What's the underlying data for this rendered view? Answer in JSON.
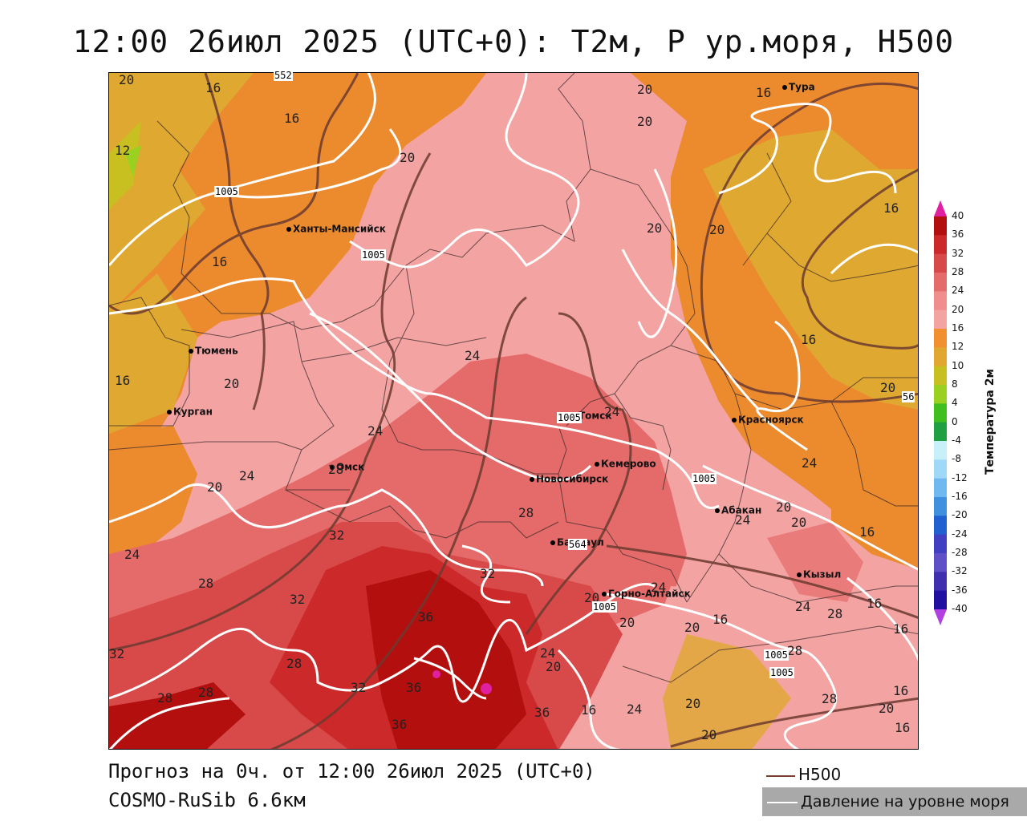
{
  "header": {
    "title": "12:00 26июл 2025 (UTC+0): T2м, P ур.моря, H500"
  },
  "map": {
    "cities": [
      {
        "name": "Тура"
      },
      {
        "name": "Ханты-Мансийск"
      },
      {
        "name": "Тюмень"
      },
      {
        "name": "Курган"
      },
      {
        "name": "Омск"
      },
      {
        "name": "Новосибирск"
      },
      {
        "name": "Томск"
      },
      {
        "name": "Кемерово"
      },
      {
        "name": "Красноярск"
      },
      {
        "name": "Абакан"
      },
      {
        "name": "Барнаул"
      },
      {
        "name": "Горно-Алтайск"
      },
      {
        "name": "Кызыл"
      }
    ],
    "contour_labels": {
      "pressure": [
        "1005",
        "1005",
        "1005",
        "1005",
        "1005",
        "1005",
        "1005"
      ],
      "h500": [
        "552",
        "564",
        "56"
      ]
    },
    "temperature_labels": [
      "20",
      "16",
      "16",
      "12",
      "20",
      "20",
      "20",
      "16",
      "16",
      "20",
      "16",
      "16",
      "20",
      "24",
      "24",
      "28",
      "28",
      "20",
      "24",
      "32",
      "32",
      "36",
      "36",
      "28",
      "32",
      "32",
      "28",
      "28",
      "32",
      "36",
      "36",
      "24",
      "28",
      "24",
      "20",
      "24",
      "20",
      "16",
      "16",
      "20",
      "24",
      "20",
      "16",
      "28",
      "24",
      "20",
      "28",
      "24",
      "20",
      "16",
      "20",
      "16",
      "16",
      "24",
      "20",
      "28",
      "20",
      "16",
      "20",
      "16",
      "24",
      "20"
    ]
  },
  "colorbar": {
    "title": "Температура 2м",
    "ticks": [
      "40",
      "36",
      "32",
      "28",
      "24",
      "20",
      "16",
      "12",
      "10",
      "8",
      "4",
      "0",
      "-4",
      "-8",
      "-12",
      "-16",
      "-20",
      "-24",
      "-28",
      "-32",
      "-36",
      "-40"
    ],
    "colors": [
      "#b30f0f",
      "#cc2a2a",
      "#d84a4a",
      "#e56a6a",
      "#f08e8e",
      "#f4a3a3",
      "#f09030",
      "#e0a830",
      "#c8c020",
      "#9ad020",
      "#40c020",
      "#20a040",
      "#c8f0f8",
      "#a0d8f8",
      "#70b8f0",
      "#4090e0",
      "#2060d0",
      "#4040c0",
      "#6050c8",
      "#4030b0",
      "#2010a0"
    ],
    "top_tip_color": "#e020a0",
    "bottom_tip_color": "#b040e0"
  },
  "footer": {
    "line1": "Прогноз на 0ч. от 12:00 26июл 2025 (UTC+0)",
    "line2": "COSMO-RuSib 6.6км"
  },
  "legend": {
    "h500_label": "H500",
    "h500_color": "#7a3e33",
    "pressure_label": "Давление на уровне моря",
    "pressure_color": "#ffffff"
  }
}
